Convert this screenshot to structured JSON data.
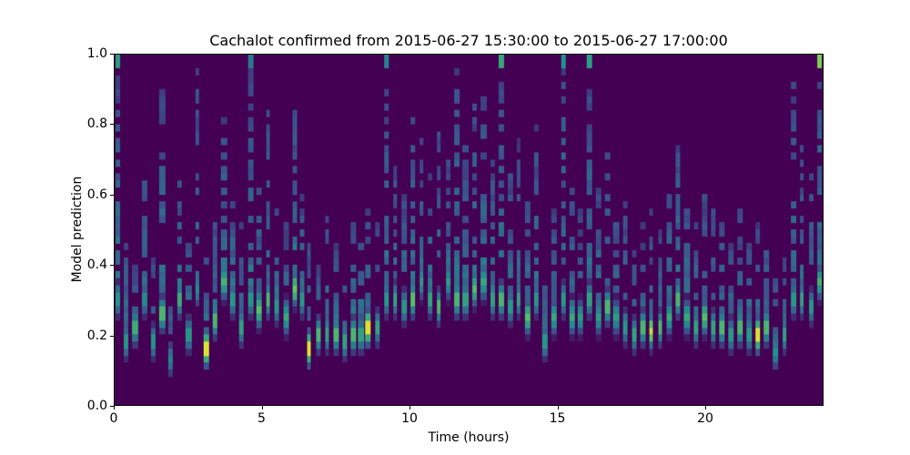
{
  "chart_data": {
    "type": "heatmap",
    "title": "Cachalot confirmed from 2015-06-27 15:30:00 to 2015-06-27 17:00:00",
    "xlabel": "Time (hours)",
    "ylabel": "Model prediction",
    "xlim": [
      0,
      24
    ],
    "ylim": [
      0.0,
      1.0
    ],
    "xticks": [
      "0",
      "5",
      "10",
      "15",
      "20"
    ],
    "yticks": [
      "0.0",
      "0.2",
      "0.4",
      "0.6",
      "0.8",
      "1.0"
    ],
    "colormap": "viridis",
    "background_color": "#440154",
    "legend": "none",
    "grid": false,
    "columns_format": [
      "time_hours",
      "peak_prediction",
      "peak_intensity_0to1",
      "tail_top_prediction",
      "top_edge_intensity"
    ],
    "columns": [
      [
        0.1,
        0.3,
        0.55,
        1.0,
        0.55
      ],
      [
        0.4,
        0.18,
        0.55,
        0.45,
        0
      ],
      [
        0.7,
        0.22,
        0.65,
        0.38,
        0
      ],
      [
        1.0,
        0.3,
        0.5,
        0.65,
        0
      ],
      [
        1.3,
        0.18,
        0.55,
        0.4,
        0
      ],
      [
        1.6,
        0.26,
        0.7,
        0.9,
        0
      ],
      [
        1.9,
        0.13,
        0.45,
        0.3,
        0
      ],
      [
        2.2,
        0.3,
        0.65,
        0.7,
        0
      ],
      [
        2.5,
        0.2,
        0.55,
        0.45,
        0
      ],
      [
        2.8,
        0.33,
        0.5,
        0.95,
        0
      ],
      [
        3.1,
        0.16,
        1.0,
        0.4,
        0
      ],
      [
        3.4,
        0.24,
        0.7,
        0.55,
        0
      ],
      [
        3.7,
        0.35,
        0.65,
        0.8,
        0
      ],
      [
        4.0,
        0.3,
        0.55,
        0.6,
        0
      ],
      [
        4.3,
        0.22,
        0.6,
        0.5,
        0
      ],
      [
        4.6,
        0.3,
        0.55,
        1.0,
        0.4
      ],
      [
        4.9,
        0.27,
        0.7,
        0.6,
        0
      ],
      [
        5.2,
        0.3,
        0.7,
        0.85,
        0
      ],
      [
        5.5,
        0.28,
        0.55,
        0.55,
        0
      ],
      [
        5.8,
        0.25,
        0.6,
        0.5,
        0
      ],
      [
        6.1,
        0.33,
        0.75,
        0.9,
        0
      ],
      [
        6.35,
        0.3,
        0.55,
        0.6,
        0
      ],
      [
        6.6,
        0.16,
        1.0,
        0.45,
        0
      ],
      [
        6.9,
        0.2,
        0.7,
        0.4,
        0
      ],
      [
        7.2,
        0.2,
        0.6,
        0.55,
        0
      ],
      [
        7.5,
        0.2,
        0.7,
        0.45,
        0
      ],
      [
        7.8,
        0.18,
        0.6,
        0.4,
        0
      ],
      [
        8.1,
        0.2,
        0.7,
        0.5,
        0
      ],
      [
        8.35,
        0.2,
        0.6,
        0.45,
        0
      ],
      [
        8.6,
        0.22,
        1.0,
        0.55,
        0
      ],
      [
        8.9,
        0.22,
        0.6,
        0.5,
        0
      ],
      [
        9.2,
        0.3,
        0.55,
        1.0,
        0.45
      ],
      [
        9.5,
        0.3,
        0.6,
        0.7,
        0
      ],
      [
        9.8,
        0.28,
        0.55,
        0.6,
        0
      ],
      [
        10.1,
        0.3,
        0.75,
        0.85,
        0
      ],
      [
        10.4,
        0.35,
        0.55,
        0.75,
        0
      ],
      [
        10.7,
        0.3,
        0.6,
        0.65,
        0
      ],
      [
        11.0,
        0.28,
        0.7,
        0.8,
        0
      ],
      [
        11.3,
        0.35,
        0.55,
        0.7,
        0
      ],
      [
        11.6,
        0.3,
        0.7,
        0.95,
        0
      ],
      [
        11.9,
        0.3,
        0.6,
        0.75,
        0
      ],
      [
        12.2,
        0.33,
        0.7,
        0.85,
        0
      ],
      [
        12.5,
        0.35,
        0.6,
        0.9,
        0
      ],
      [
        12.8,
        0.3,
        0.6,
        0.7,
        0
      ],
      [
        13.1,
        0.3,
        0.7,
        1.0,
        0.6
      ],
      [
        13.4,
        0.28,
        0.55,
        0.65,
        0
      ],
      [
        13.7,
        0.3,
        0.6,
        0.75,
        0
      ],
      [
        14.0,
        0.25,
        0.7,
        0.6,
        0
      ],
      [
        14.3,
        0.3,
        0.55,
        0.8,
        0
      ],
      [
        14.6,
        0.18,
        0.55,
        0.4,
        0
      ],
      [
        14.9,
        0.25,
        0.6,
        0.55,
        0
      ],
      [
        15.2,
        0.3,
        0.55,
        1.0,
        0.5
      ],
      [
        15.5,
        0.25,
        0.6,
        0.6,
        0
      ],
      [
        15.8,
        0.25,
        0.55,
        0.55,
        0
      ],
      [
        16.1,
        0.3,
        0.6,
        1.0,
        0.55
      ],
      [
        16.4,
        0.25,
        0.55,
        0.6,
        0
      ],
      [
        16.7,
        0.28,
        0.7,
        0.7,
        0
      ],
      [
        17.0,
        0.25,
        0.55,
        0.55,
        0
      ],
      [
        17.3,
        0.22,
        0.55,
        0.6,
        0
      ],
      [
        17.6,
        0.2,
        0.6,
        0.45,
        0
      ],
      [
        17.9,
        0.22,
        0.7,
        0.5,
        0
      ],
      [
        18.2,
        0.21,
        0.9,
        0.55,
        0
      ],
      [
        18.5,
        0.22,
        0.7,
        0.5,
        0
      ],
      [
        18.8,
        0.25,
        0.6,
        0.6,
        0
      ],
      [
        19.1,
        0.3,
        0.7,
        0.75,
        0
      ],
      [
        19.4,
        0.25,
        0.6,
        0.55,
        0
      ],
      [
        19.7,
        0.22,
        0.6,
        0.5,
        0
      ],
      [
        20.0,
        0.25,
        0.7,
        0.6,
        0
      ],
      [
        20.3,
        0.22,
        0.6,
        0.55,
        0
      ],
      [
        20.6,
        0.22,
        0.7,
        0.5,
        0
      ],
      [
        20.9,
        0.2,
        0.55,
        0.45,
        0
      ],
      [
        21.2,
        0.22,
        0.7,
        0.55,
        0
      ],
      [
        21.5,
        0.2,
        0.55,
        0.45,
        0
      ],
      [
        21.8,
        0.2,
        1.0,
        0.5,
        0
      ],
      [
        22.1,
        0.22,
        0.7,
        0.55,
        0
      ],
      [
        22.4,
        0.15,
        0.5,
        0.35,
        0
      ],
      [
        22.7,
        0.2,
        0.6,
        0.45,
        0
      ],
      [
        23.0,
        0.3,
        0.55,
        0.9,
        0
      ],
      [
        23.3,
        0.3,
        0.6,
        0.75,
        0
      ],
      [
        23.6,
        0.28,
        0.55,
        0.65,
        0
      ],
      [
        23.9,
        0.35,
        0.65,
        1.0,
        0.8
      ]
    ]
  }
}
